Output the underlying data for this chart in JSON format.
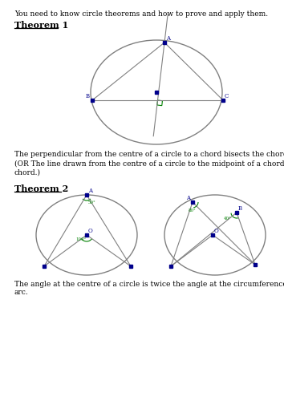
{
  "intro_text": "You need to know circle theorems and how to prove and apply them.",
  "theorem1_title": "Theorem 1",
  "theorem1_desc1": "The perpendicular from the centre of a circle to a chord bisects the chord.",
  "theorem1_desc2": "(OR The line drawn from the centre of a circle to the midpoint of a chord is perpendicular to the\nchord.)",
  "theorem2_title": "Theorem 2",
  "theorem2_desc": "The angle at the centre of a circle is twice the angle at the circumference, both subtended by the same\narc.",
  "bg_color": "#ffffff",
  "line_color": "#808080",
  "point_color": "#00008B",
  "angle_color": "#008000",
  "text_color": "#000000"
}
